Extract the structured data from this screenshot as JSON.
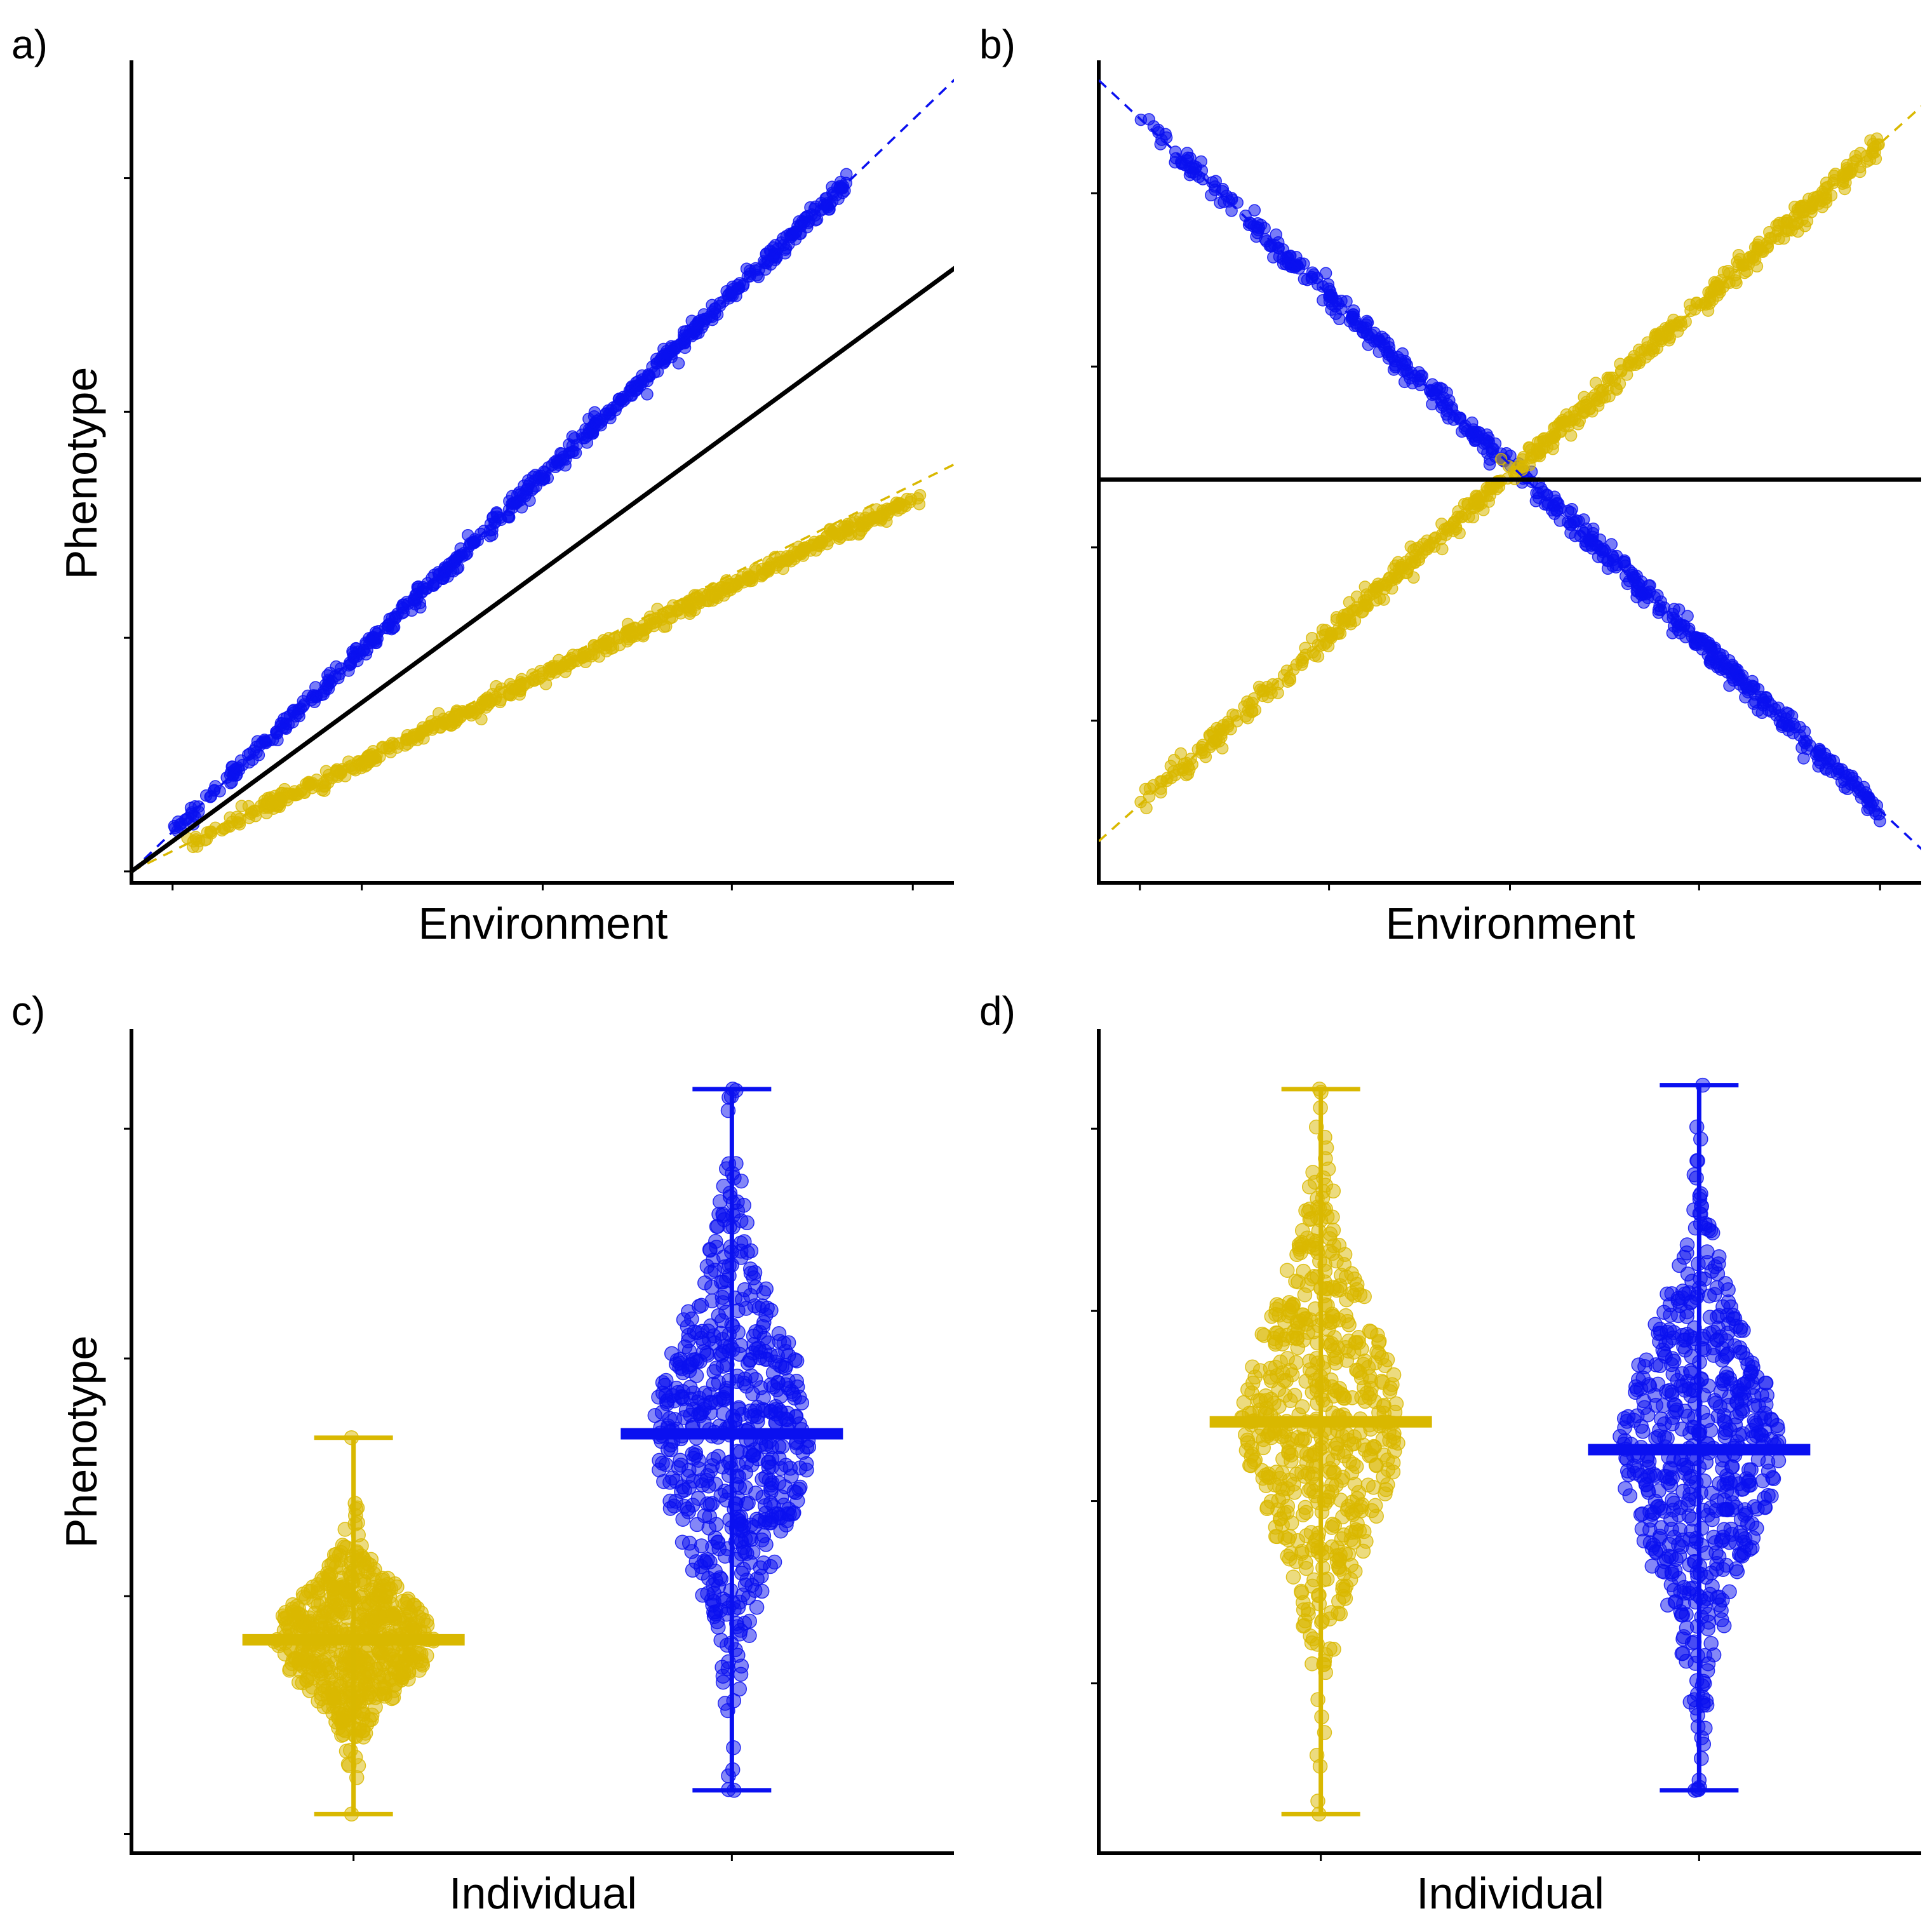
{
  "colors": {
    "yellow": "#d9b800",
    "blue": "#0a10f0",
    "black": "#000000"
  },
  "chart_data": [
    {
      "panel": "a)",
      "type": "scatter",
      "xlabel": "Environment",
      "ylabel": "Phenotype",
      "xlim": [
        0,
        1
      ],
      "ylim": [
        0,
        1
      ],
      "x_ticks": [
        0.05,
        0.28,
        0.5,
        0.73,
        0.95
      ],
      "y_ticks": [
        0.0,
        0.31,
        0.61,
        0.92
      ],
      "tick_labels": "none",
      "series": [
        {
          "color": "blue",
          "points": 600,
          "x_range": [
            0.045,
            0.87
          ],
          "intercept": 0.0,
          "slope": 1.05,
          "noise": 0.006
        },
        {
          "color": "yellow",
          "points": 600,
          "x_range": [
            0.065,
            0.96
          ],
          "intercept": 0.0,
          "slope": 0.52,
          "noise": 0.005
        }
      ],
      "fit_lines": [
        {
          "color": "blue",
          "dash": true,
          "intercept": 0.0,
          "slope": 1.05
        },
        {
          "color": "yellow",
          "dash": true,
          "intercept": 0.0,
          "slope": 0.54
        },
        {
          "color": "black",
          "dash": false,
          "intercept": 0.0,
          "slope": 0.8
        }
      ]
    },
    {
      "panel": "b)",
      "type": "scatter",
      "xlabel": "Environment",
      "ylabel": "",
      "xlim": [
        0,
        1
      ],
      "ylim": [
        0,
        1
      ],
      "x_ticks": [
        0.05,
        0.28,
        0.5,
        0.73,
        0.95
      ],
      "y_ticks": [
        0.2,
        0.43,
        0.67,
        0.9
      ],
      "tick_labels": "none",
      "series": [
        {
          "color": "blue",
          "points": 600,
          "x_range": [
            0.05,
            0.95
          ],
          "intercept": 1.05,
          "slope": -1.02,
          "noise": 0.008
        },
        {
          "color": "yellow",
          "points": 600,
          "x_range": [
            0.05,
            0.95
          ],
          "intercept": 0.04,
          "slope": 0.975,
          "noise": 0.008
        }
      ],
      "fit_lines": [
        {
          "color": "blue",
          "dash": true,
          "intercept": 1.05,
          "slope": -1.02
        },
        {
          "color": "yellow",
          "dash": true,
          "intercept": 0.04,
          "slope": 0.975
        },
        {
          "color": "black",
          "dash": false,
          "intercept": 0.52,
          "slope": 0.0
        }
      ]
    },
    {
      "panel": "c)",
      "type": "beeswarm",
      "xlabel": "Individual",
      "ylabel": "Phenotype",
      "categories": [
        "1",
        "2"
      ],
      "ylim": [
        0,
        1
      ],
      "y_ticks": [
        0.01,
        0.31,
        0.61,
        0.9
      ],
      "tick_labels": "none",
      "groups": [
        {
          "color": "yellow",
          "mean": 0.255,
          "min": 0.035,
          "max": 0.51,
          "sd": 0.06,
          "points": 600
        },
        {
          "color": "blue",
          "mean": 0.515,
          "min": 0.065,
          "max": 0.95,
          "sd": 0.14,
          "points": 600
        }
      ]
    },
    {
      "panel": "d)",
      "type": "beeswarm",
      "xlabel": "Individual",
      "ylabel": "",
      "categories": [
        "1",
        "2"
      ],
      "ylim": [
        0,
        1
      ],
      "y_ticks": [
        0.2,
        0.43,
        0.67,
        0.9
      ],
      "tick_labels": "none",
      "groups": [
        {
          "color": "yellow",
          "mean": 0.53,
          "min": 0.035,
          "max": 0.95,
          "sd": 0.14,
          "points": 600
        },
        {
          "color": "blue",
          "mean": 0.495,
          "min": 0.065,
          "max": 0.955,
          "sd": 0.14,
          "points": 600
        }
      ]
    }
  ]
}
